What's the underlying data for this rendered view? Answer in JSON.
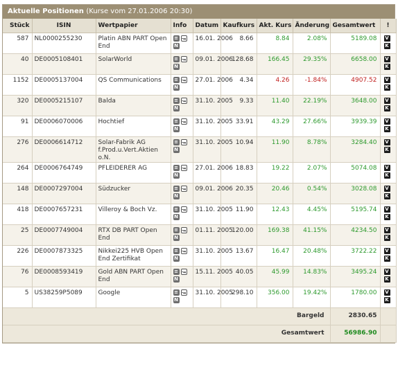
{
  "panel": {
    "title": "Aktuelle Positionen",
    "subtitle": "(Kurse vom 27.01.2006 20:30)"
  },
  "columns": {
    "stueck": "Stück",
    "isin": "ISIN",
    "wertpapier": "Wertpapier",
    "info": "Info",
    "datum": "Datum",
    "kaufkurs": "Kaufkurs",
    "akt_kurs": "Akt. Kurs",
    "aenderung": "Änderung",
    "gesamtwert": "Gesamtwert",
    "alert": "!"
  },
  "icons": {
    "info_doc": "document-icon",
    "info_chart": "chart-icon",
    "info_news": "news-icon",
    "sell": "V",
    "buy": "K"
  },
  "colors": {
    "header_bar": "#9c8f74",
    "column_header": "#e5e0d2",
    "positive": "#2e9a2e",
    "negative": "#c0211f"
  },
  "rows": [
    {
      "stueck": "587",
      "isin": "NL0000255230",
      "wertpapier": "Platin ABN PART Open End",
      "datum": "16.01. 2006",
      "kaufkurs": "8.66",
      "akt_kurs": "8.84",
      "aenderung": "2.08%",
      "gesamtwert": "5189.08",
      "trend": "pos"
    },
    {
      "stueck": "40",
      "isin": "DE0005108401",
      "wertpapier": "SolarWorld",
      "datum": "09.01. 2006",
      "kaufkurs": "128.68",
      "akt_kurs": "166.45",
      "aenderung": "29.35%",
      "gesamtwert": "6658.00",
      "trend": "pos"
    },
    {
      "stueck": "1152",
      "isin": "DE0005137004",
      "wertpapier": "QS Communications",
      "datum": "27.01. 2006",
      "kaufkurs": "4.34",
      "akt_kurs": "4.26",
      "aenderung": "-1.84%",
      "gesamtwert": "4907.52",
      "trend": "neg"
    },
    {
      "stueck": "320",
      "isin": "DE0005215107",
      "wertpapier": "Balda",
      "datum": "31.10. 2005",
      "kaufkurs": "9.33",
      "akt_kurs": "11.40",
      "aenderung": "22.19%",
      "gesamtwert": "3648.00",
      "trend": "pos"
    },
    {
      "stueck": "91",
      "isin": "DE0006070006",
      "wertpapier": "Hochtief",
      "datum": "31.10. 2005",
      "kaufkurs": "33.91",
      "akt_kurs": "43.29",
      "aenderung": "27.66%",
      "gesamtwert": "3939.39",
      "trend": "pos"
    },
    {
      "stueck": "276",
      "isin": "DE0006614712",
      "wertpapier": "Solar-Fabrik AG f.Prod.u.Vert.Aktien o.N.",
      "datum": "31.10. 2005",
      "kaufkurs": "10.94",
      "akt_kurs": "11.90",
      "aenderung": "8.78%",
      "gesamtwert": "3284.40",
      "trend": "pos"
    },
    {
      "stueck": "264",
      "isin": "DE0006764749",
      "wertpapier": "PFLEIDERER AG",
      "datum": "27.01. 2006",
      "kaufkurs": "18.83",
      "akt_kurs": "19.22",
      "aenderung": "2.07%",
      "gesamtwert": "5074.08",
      "trend": "pos"
    },
    {
      "stueck": "148",
      "isin": "DE0007297004",
      "wertpapier": "Südzucker",
      "datum": "09.01. 2006",
      "kaufkurs": "20.35",
      "akt_kurs": "20.46",
      "aenderung": "0.54%",
      "gesamtwert": "3028.08",
      "trend": "pos"
    },
    {
      "stueck": "418",
      "isin": "DE0007657231",
      "wertpapier": "Villeroy & Boch Vz.",
      "datum": "31.10. 2005",
      "kaufkurs": "11.90",
      "akt_kurs": "12.43",
      "aenderung": "4.45%",
      "gesamtwert": "5195.74",
      "trend": "pos"
    },
    {
      "stueck": "25",
      "isin": "DE0007749004",
      "wertpapier": "RTX DB PART Open End",
      "datum": "01.11. 2005",
      "kaufkurs": "120.00",
      "akt_kurs": "169.38",
      "aenderung": "41.15%",
      "gesamtwert": "4234.50",
      "trend": "pos"
    },
    {
      "stueck": "226",
      "isin": "DE0007873325",
      "wertpapier": "Nikkei225 HVB Open End Zertifikat",
      "datum": "31.10. 2005",
      "kaufkurs": "13.67",
      "akt_kurs": "16.47",
      "aenderung": "20.48%",
      "gesamtwert": "3722.22",
      "trend": "pos"
    },
    {
      "stueck": "76",
      "isin": "DE0008593419",
      "wertpapier": "Gold ABN PART Open End",
      "datum": "15.11. 2005",
      "kaufkurs": "40.05",
      "akt_kurs": "45.99",
      "aenderung": "14.83%",
      "gesamtwert": "3495.24",
      "trend": "pos"
    },
    {
      "stueck": "5",
      "isin": "US38259P5089",
      "wertpapier": "Google",
      "datum": "31.10. 2005",
      "kaufkurs": "298.10",
      "akt_kurs": "356.00",
      "aenderung": "19.42%",
      "gesamtwert": "1780.00",
      "trend": "pos"
    }
  ],
  "summary": {
    "bargeld_label": "Bargeld",
    "bargeld_value": "2830.65",
    "gesamtwert_label": "Gesamtwert",
    "gesamtwert_value": "56986.90"
  }
}
